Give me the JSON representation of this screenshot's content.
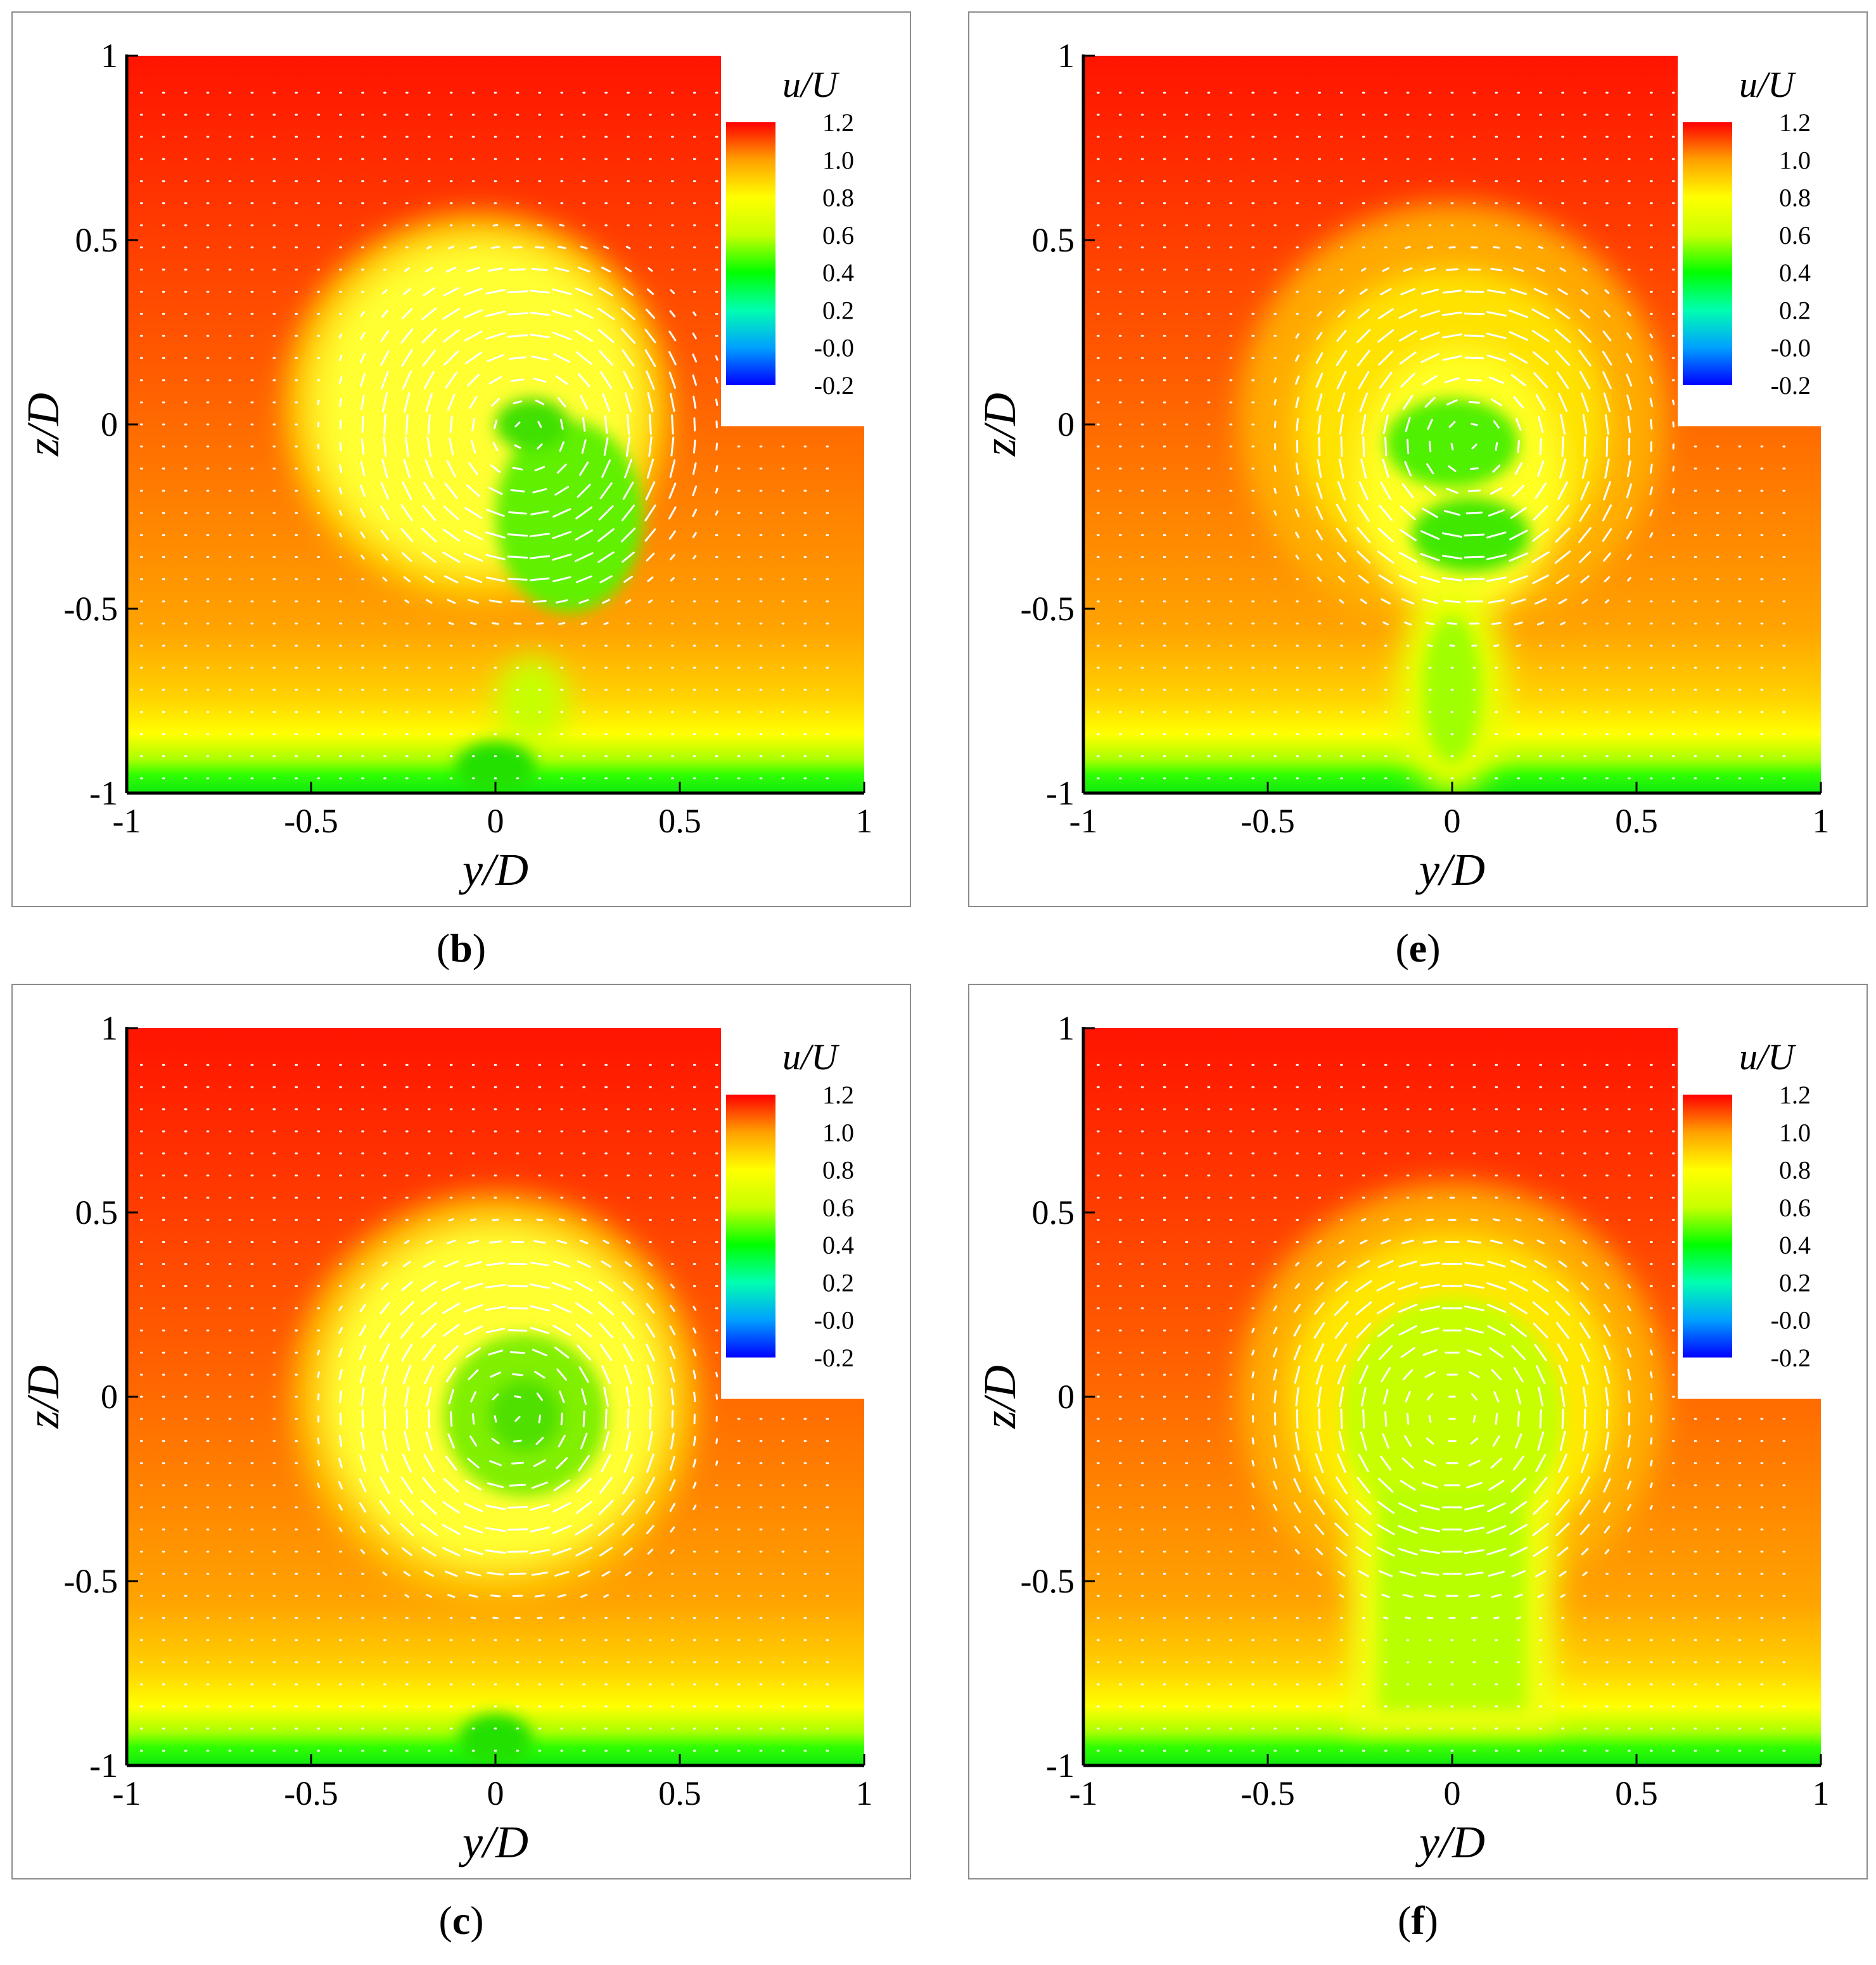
{
  "figure": {
    "panels": [
      {
        "id": "b",
        "label_open": "(",
        "label_letter": "b",
        "label_close": ")",
        "vortex": "single-core-offset",
        "core": [
          0.08,
          -0.02
        ],
        "radius": 0.5
      },
      {
        "id": "e",
        "label_open": "(",
        "label_letter": "e",
        "label_close": ")",
        "vortex": "double-core",
        "core": [
          0.05,
          -0.05
        ],
        "radius": 0.5
      },
      {
        "id": "c",
        "label_open": "(",
        "label_letter": "c",
        "label_close": ")",
        "vortex": "spiral",
        "core": [
          0.05,
          -0.05
        ],
        "radius": 0.5
      },
      {
        "id": "f",
        "label_open": "(",
        "label_letter": "f",
        "label_close": ")",
        "vortex": "mushroom",
        "core": [
          0.0,
          -0.05
        ],
        "radius": 0.52
      }
    ]
  },
  "chart_data": [
    {
      "type": "heatmap",
      "panel": "b",
      "xlabel": "y/D",
      "ylabel": "z/D",
      "xlim": [
        -1,
        1
      ],
      "ylim": [
        -1,
        1
      ],
      "xticks": [
        "-1",
        "-0.5",
        "0",
        "0.5",
        "1"
      ],
      "yticks": [
        "1",
        "0.5",
        "0",
        "-0.5",
        "-1"
      ],
      "colorbar": {
        "title": "u/U",
        "ticks": [
          "1.2",
          "1.0",
          "0.8",
          "0.6",
          "0.4",
          "0.2",
          "-0.0",
          "-0.2"
        ],
        "range": [
          -0.2,
          1.2
        ],
        "colors": [
          "#0000ff",
          "#00a0ff",
          "#00ffb0",
          "#00ff00",
          "#c8ff00",
          "#ffff00",
          "#ffa000",
          "#ff0000"
        ]
      }
    },
    {
      "type": "heatmap",
      "panel": "e",
      "xlabel": "y/D",
      "ylabel": "z/D",
      "xlim": [
        -1,
        1
      ],
      "ylim": [
        -1,
        1
      ],
      "xticks": [
        "-1",
        "-0.5",
        "0",
        "0.5",
        "1"
      ],
      "yticks": [
        "1",
        "0.5",
        "0",
        "-0.5",
        "-1"
      ],
      "colorbar": {
        "title": "u/U",
        "ticks": [
          "1.2",
          "1.0",
          "0.8",
          "0.6",
          "0.4",
          "0.2",
          "-0.0",
          "-0.2"
        ],
        "range": [
          -0.2,
          1.2
        ],
        "colors": [
          "#0000ff",
          "#00a0ff",
          "#00ffb0",
          "#00ff00",
          "#c8ff00",
          "#ffff00",
          "#ffa000",
          "#ff0000"
        ]
      }
    },
    {
      "type": "heatmap",
      "panel": "c",
      "xlabel": "y/D",
      "ylabel": "z/D",
      "xlim": [
        -1,
        1
      ],
      "ylim": [
        -1,
        1
      ],
      "xticks": [
        "-1",
        "-0.5",
        "0",
        "0.5",
        "1"
      ],
      "yticks": [
        "1",
        "0.5",
        "0",
        "-0.5",
        "-1"
      ],
      "colorbar": {
        "title": "u/U",
        "ticks": [
          "1.2",
          "1.0",
          "0.8",
          "0.6",
          "0.4",
          "0.2",
          "-0.0",
          "-0.2"
        ],
        "range": [
          -0.2,
          1.2
        ],
        "colors": [
          "#0000ff",
          "#00a0ff",
          "#00ffb0",
          "#00ff00",
          "#c8ff00",
          "#ffff00",
          "#ffa000",
          "#ff0000"
        ]
      }
    },
    {
      "type": "heatmap",
      "panel": "f",
      "xlabel": "y/D",
      "ylabel": "z/D",
      "xlim": [
        -1,
        1
      ],
      "ylim": [
        -1,
        1
      ],
      "xticks": [
        "-1",
        "-0.5",
        "0",
        "0.5",
        "1"
      ],
      "yticks": [
        "1",
        "0.5",
        "0",
        "-0.5",
        "-1"
      ],
      "colorbar": {
        "title": "u/U",
        "ticks": [
          "1.2",
          "1.0",
          "0.8",
          "0.6",
          "0.4",
          "0.2",
          "-0.0",
          "-0.2"
        ],
        "range": [
          -0.2,
          1.2
        ],
        "colors": [
          "#0000ff",
          "#00a0ff",
          "#00ffb0",
          "#00ff00",
          "#c8ff00",
          "#ffff00",
          "#ffa000",
          "#ff0000"
        ]
      }
    }
  ]
}
